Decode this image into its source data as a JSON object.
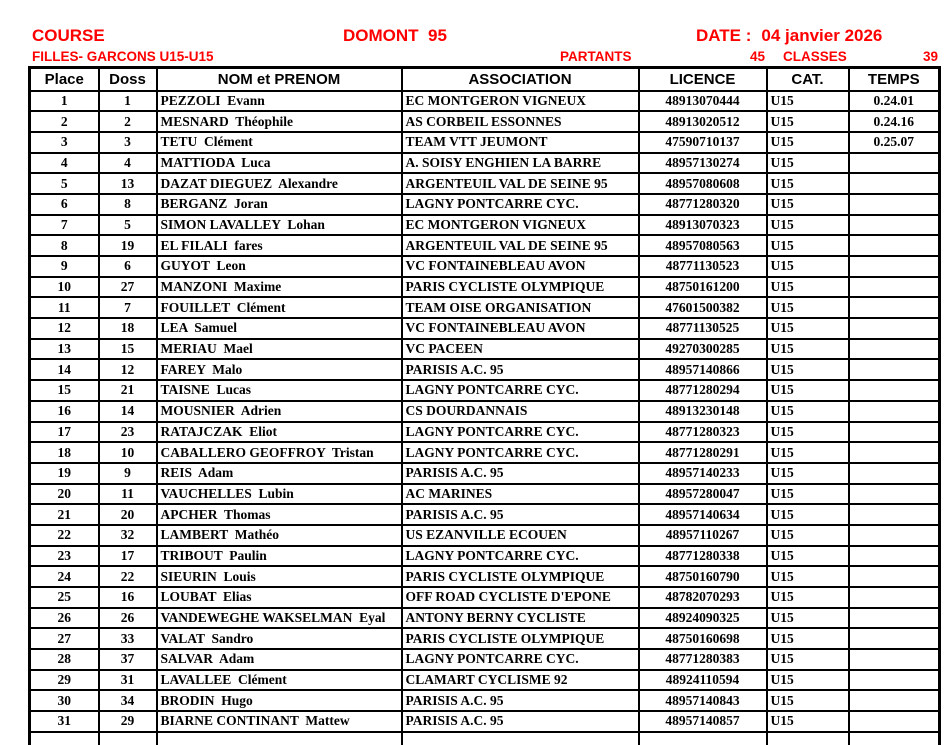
{
  "header": {
    "accent_color": "#ff0000",
    "course_label": "COURSE",
    "race_title": "DOMONT  95",
    "date_label": "DATE :",
    "date_value": "04 janvier 2026",
    "category_line": "FILLES- GARCONS U15-U15",
    "partants_label": "PARTANTS",
    "partants_value": "45",
    "classes_label": "CLASSES",
    "classes_value": "39"
  },
  "table": {
    "columns": [
      "Place",
      "Doss",
      "NOM et PRENOM",
      "ASSOCIATION",
      "LICENCE",
      "CAT.",
      "TEMPS"
    ],
    "rows": [
      {
        "place": "1",
        "doss": "1",
        "name": "PEZZOLI  Evann",
        "association": "EC MONTGERON VIGNEUX",
        "licence": "48913070444",
        "cat": "U15",
        "temps": "0.24.01"
      },
      {
        "place": "2",
        "doss": "2",
        "name": "MESNARD  Théophile",
        "association": "AS CORBEIL ESSONNES",
        "licence": "48913020512",
        "cat": "U15",
        "temps": "0.24.16"
      },
      {
        "place": "3",
        "doss": "3",
        "name": "TETU  Clément",
        "association": "TEAM VTT JEUMONT",
        "licence": "47590710137",
        "cat": "U15",
        "temps": "0.25.07"
      },
      {
        "place": "4",
        "doss": "4",
        "name": "MATTIODA  Luca",
        "association": "A. SOISY ENGHIEN LA BARRE",
        "licence": "48957130274",
        "cat": "U15",
        "temps": ""
      },
      {
        "place": "5",
        "doss": "13",
        "name": "DAZAT DIEGUEZ  Alexandre",
        "association": "ARGENTEUIL VAL DE SEINE 95",
        "licence": "48957080608",
        "cat": "U15",
        "temps": ""
      },
      {
        "place": "6",
        "doss": "8",
        "name": "BERGANZ  Joran",
        "association": "LAGNY PONTCARRE CYC.",
        "licence": "48771280320",
        "cat": "U15",
        "temps": ""
      },
      {
        "place": "7",
        "doss": "5",
        "name": "SIMON LAVALLEY  Lohan",
        "association": "EC MONTGERON VIGNEUX",
        "licence": "48913070323",
        "cat": "U15",
        "temps": ""
      },
      {
        "place": "8",
        "doss": "19",
        "name": "EL FILALI  fares",
        "association": "ARGENTEUIL VAL DE SEINE 95",
        "licence": "48957080563",
        "cat": "U15",
        "temps": ""
      },
      {
        "place": "9",
        "doss": "6",
        "name": "GUYOT  Leon",
        "association": "VC FONTAINEBLEAU AVON",
        "licence": "48771130523",
        "cat": "U15",
        "temps": ""
      },
      {
        "place": "10",
        "doss": "27",
        "name": "MANZONI  Maxime",
        "association": "PARIS CYCLISTE OLYMPIQUE",
        "licence": "48750161200",
        "cat": "U15",
        "temps": ""
      },
      {
        "place": "11",
        "doss": "7",
        "name": "FOUILLET  Clément",
        "association": "TEAM OISE ORGANISATION",
        "licence": "47601500382",
        "cat": "U15",
        "temps": ""
      },
      {
        "place": "12",
        "doss": "18",
        "name": "LEA  Samuel",
        "association": "VC FONTAINEBLEAU AVON",
        "licence": "48771130525",
        "cat": "U15",
        "temps": ""
      },
      {
        "place": "13",
        "doss": "15",
        "name": "MERIAU  Mael",
        "association": "VC PACEEN",
        "licence": "49270300285",
        "cat": "U15",
        "temps": ""
      },
      {
        "place": "14",
        "doss": "12",
        "name": "FAREY  Malo",
        "association": "PARISIS A.C. 95",
        "licence": "48957140866",
        "cat": "U15",
        "temps": ""
      },
      {
        "place": "15",
        "doss": "21",
        "name": "TAISNE  Lucas",
        "association": "LAGNY PONTCARRE CYC.",
        "licence": "48771280294",
        "cat": "U15",
        "temps": ""
      },
      {
        "place": "16",
        "doss": "14",
        "name": "MOUSNIER  Adrien",
        "association": "CS DOURDANNAIS",
        "licence": "48913230148",
        "cat": "U15",
        "temps": ""
      },
      {
        "place": "17",
        "doss": "23",
        "name": "RATAJCZAK  Eliot",
        "association": "LAGNY PONTCARRE CYC.",
        "licence": "48771280323",
        "cat": "U15",
        "temps": ""
      },
      {
        "place": "18",
        "doss": "10",
        "name": "CABALLERO GEOFFROY  Tristan",
        "association": "LAGNY PONTCARRE CYC.",
        "licence": "48771280291",
        "cat": "U15",
        "temps": ""
      },
      {
        "place": "19",
        "doss": "9",
        "name": "REIS  Adam",
        "association": "PARISIS A.C. 95",
        "licence": "48957140233",
        "cat": "U15",
        "temps": ""
      },
      {
        "place": "20",
        "doss": "11",
        "name": "VAUCHELLES  Lubin",
        "association": "AC MARINES",
        "licence": "48957280047",
        "cat": "U15",
        "temps": ""
      },
      {
        "place": "21",
        "doss": "20",
        "name": "APCHER  Thomas",
        "association": "PARISIS A.C. 95",
        "licence": "48957140634",
        "cat": "U15",
        "temps": ""
      },
      {
        "place": "22",
        "doss": "32",
        "name": "LAMBERT  Mathéo",
        "association": "US EZANVILLE ECOUEN",
        "licence": "48957110267",
        "cat": "U15",
        "temps": ""
      },
      {
        "place": "23",
        "doss": "17",
        "name": "TRIBOUT  Paulin",
        "association": "LAGNY PONTCARRE CYC.",
        "licence": "48771280338",
        "cat": "U15",
        "temps": ""
      },
      {
        "place": "24",
        "doss": "22",
        "name": "SIEURIN  Louis",
        "association": "PARIS CYCLISTE OLYMPIQUE",
        "licence": "48750160790",
        "cat": "U15",
        "temps": ""
      },
      {
        "place": "25",
        "doss": "16",
        "name": "LOUBAT  Elias",
        "association": "OFF ROAD CYCLISTE D'EPONE",
        "licence": "48782070293",
        "cat": "U15",
        "temps": ""
      },
      {
        "place": "26",
        "doss": "26",
        "name": "VANDEWEGHE WAKSELMAN  Eyal",
        "association": "ANTONY BERNY CYCLISTE",
        "licence": "48924090325",
        "cat": "U15",
        "temps": ""
      },
      {
        "place": "27",
        "doss": "33",
        "name": "VALAT  Sandro",
        "association": "PARIS CYCLISTE OLYMPIQUE",
        "licence": "48750160698",
        "cat": "U15",
        "temps": ""
      },
      {
        "place": "28",
        "doss": "37",
        "name": "SALVAR  Adam",
        "association": "LAGNY PONTCARRE CYC.",
        "licence": "48771280383",
        "cat": "U15",
        "temps": ""
      },
      {
        "place": "29",
        "doss": "31",
        "name": "LAVALLEE  Clément",
        "association": "CLAMART CYCLISME 92",
        "licence": "48924110594",
        "cat": "U15",
        "temps": ""
      },
      {
        "place": "30",
        "doss": "34",
        "name": "BRODIN  Hugo",
        "association": "PARISIS A.C. 95",
        "licence": "48957140843",
        "cat": "U15",
        "temps": ""
      },
      {
        "place": "31",
        "doss": "29",
        "name": "BIARNE CONTINANT  Mattew",
        "association": "PARISIS A.C. 95",
        "licence": "48957140857",
        "cat": "U15",
        "temps": ""
      },
      {
        "place": "",
        "doss": "",
        "name": "",
        "association": "",
        "licence": "",
        "cat": "",
        "temps": ""
      }
    ]
  }
}
